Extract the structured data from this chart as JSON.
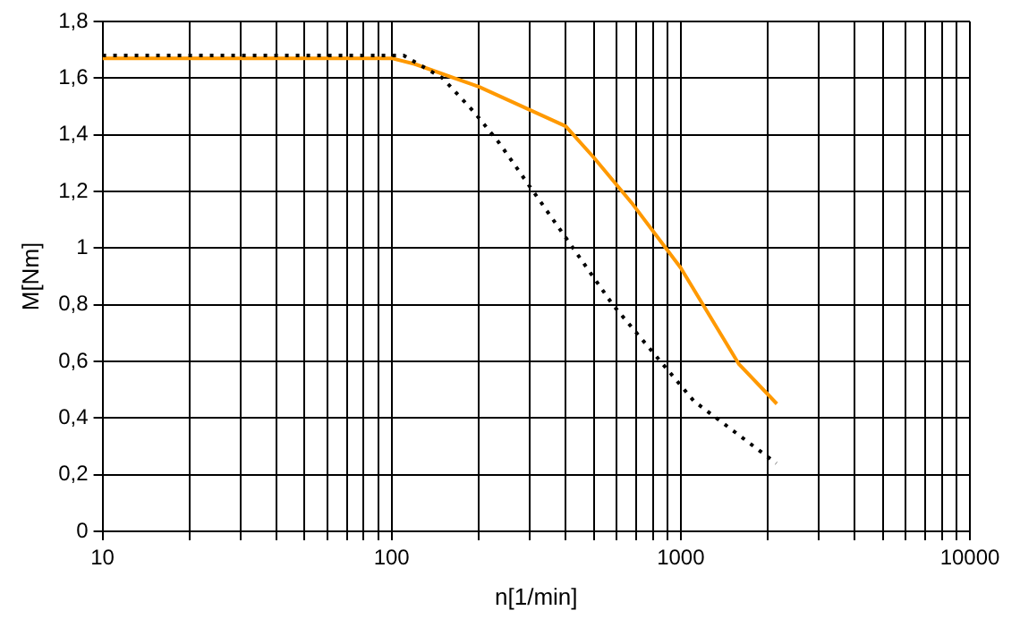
{
  "chart_data": {
    "type": "line",
    "xlabel": "n[1/min]",
    "ylabel": "M[Nm]",
    "log": "x",
    "grid": true,
    "legend": false,
    "marker": "none",
    "xlim": [
      10,
      10000
    ],
    "ylim": [
      0,
      1.8
    ],
    "xticks": [
      10,
      {
        "value": 20,
        "label": null
      },
      {
        "value": 30,
        "label": null
      },
      {
        "value": 40,
        "label": null
      },
      {
        "value": 50,
        "label": null
      },
      {
        "value": 60,
        "label": null
      },
      {
        "value": 70,
        "label": null
      },
      {
        "value": 80,
        "label": null
      },
      {
        "value": 90,
        "label": null
      },
      100,
      {
        "value": 200,
        "label": null
      },
      {
        "value": 300,
        "label": null
      },
      {
        "value": 400,
        "label": null
      },
      {
        "value": 500,
        "label": null
      },
      {
        "value": 600,
        "label": null
      },
      {
        "value": 700,
        "label": null
      },
      {
        "value": 800,
        "label": null
      },
      {
        "value": 900,
        "label": null
      },
      1000,
      {
        "value": 2000,
        "label": null
      },
      {
        "value": 3000,
        "label": null
      },
      {
        "value": 4000,
        "label": null
      },
      {
        "value": 5000,
        "label": null
      },
      {
        "value": 6000,
        "label": null
      },
      {
        "value": 7000,
        "label": null
      },
      {
        "value": 8000,
        "label": null
      },
      {
        "value": 9000,
        "label": null
      },
      10000
    ],
    "yticks": [
      0,
      {
        "value": 0.2,
        "label": "0,2"
      },
      {
        "value": 0.4,
        "label": "0,4"
      },
      {
        "value": 0.6,
        "label": "0,6"
      },
      {
        "value": 0.8,
        "label": "0,8"
      },
      1,
      {
        "value": 1.2,
        "label": "1,2"
      },
      {
        "value": 1.4,
        "label": "1,4"
      },
      {
        "value": 1.6,
        "label": "1,6"
      },
      {
        "value": 1.8,
        "label": "1,8"
      }
    ],
    "series": [
      {
        "color": "#000000",
        "line_style": "dotted",
        "x": [
          10,
          110,
          150,
          193,
          236,
          582,
          1110,
          2140
        ],
        "values": [
          1.68,
          1.68,
          1.6,
          1.48,
          1.37,
          0.8,
          0.46,
          0.24
        ]
      },
      {
        "color": "#ff9900",
        "line_style": "solid",
        "x": [
          10,
          100,
          120,
          200,
          400,
          500,
          676,
          1000,
          1590,
          2150
        ],
        "values": [
          1.67,
          1.67,
          1.65,
          1.57,
          1.43,
          1.32,
          1.16,
          0.93,
          0.59,
          0.45
        ]
      }
    ]
  }
}
